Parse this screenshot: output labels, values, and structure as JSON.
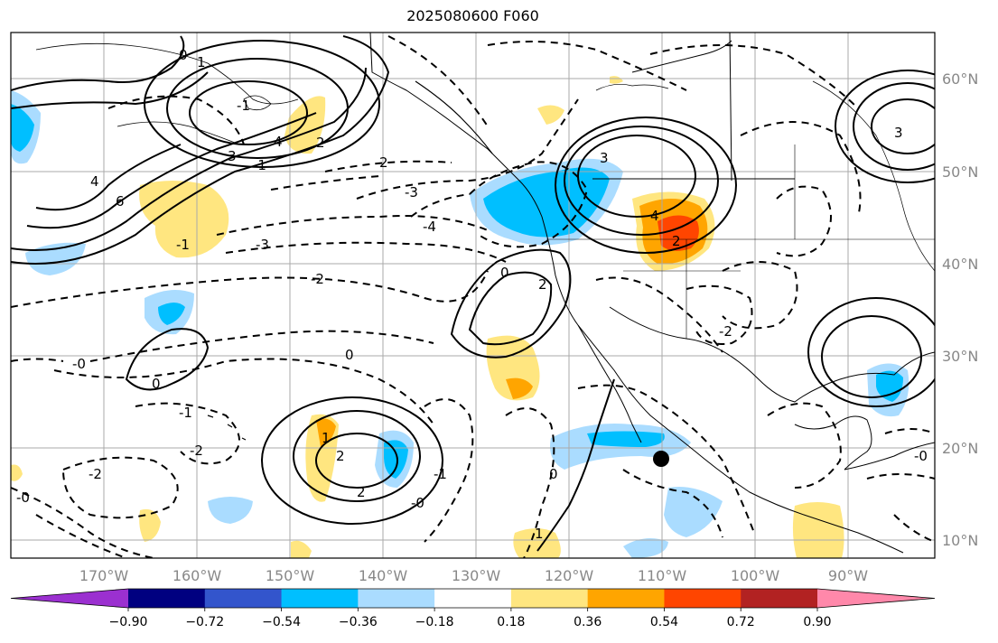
{
  "title": "2025080600 F060",
  "map": {
    "lon_ticks": [
      "170°W",
      "160°W",
      "150°W",
      "140°W",
      "130°W",
      "120°W",
      "110°W",
      "100°W",
      "90°W"
    ],
    "lat_ticks": [
      "60°N",
      "50°N",
      "40°N",
      "30°N",
      "20°N",
      "10°N"
    ],
    "contour_labels": [
      "0",
      "1",
      "-1",
      "2",
      "3",
      "4",
      "-1",
      "2",
      "-3",
      "6",
      "4",
      "-1",
      "-3",
      "-2",
      "3",
      "-4",
      "0",
      "2",
      "2",
      "-2",
      "-0",
      "0",
      "0",
      "-1",
      "-2",
      "1",
      "-2",
      "2",
      "-1",
      "0",
      "-0",
      "1",
      "2",
      "4",
      "3",
      "-0",
      "-0"
    ],
    "marker": "black-dot"
  },
  "colorbar": {
    "levels": [
      "−0.90",
      "−0.72",
      "−0.54",
      "−0.36",
      "−0.18",
      "0.18",
      "0.36",
      "0.54",
      "0.72",
      "0.90"
    ],
    "colors": [
      "#9b30d0",
      "#000080",
      "#3355cc",
      "#00bfff",
      "#aadcff",
      "#ffffff",
      "#ffe680",
      "#ffa500",
      "#ff4500",
      "#b22222",
      "#ff88aa"
    ]
  },
  "colors": {
    "negative_strong": "#00bfff",
    "negative_weak": "#aadcff",
    "positive_weak": "#ffe680",
    "positive_mid": "#ffa500",
    "positive_strong": "#ff4500",
    "grid": "#aaaaaa",
    "tick_label": "#888888"
  }
}
